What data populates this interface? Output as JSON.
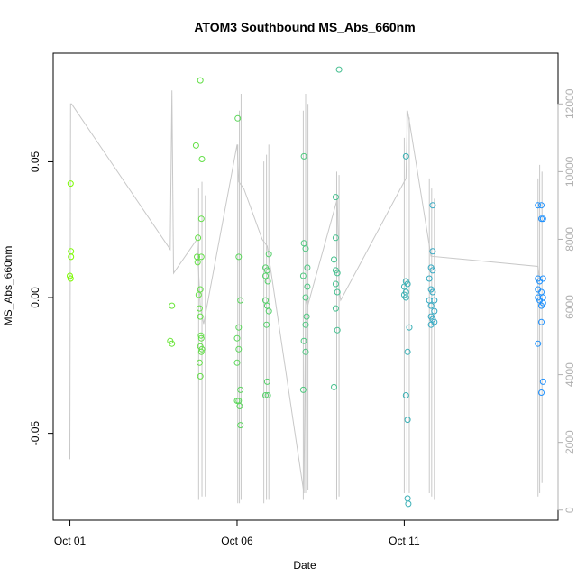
{
  "chart_data": {
    "type": "scatter",
    "title": "ATOM3 Southbound MS_Abs_660nm",
    "xlabel": "Date",
    "ylabel": "MS_Abs_660nm",
    "x_ticks": [
      "Oct 01",
      "Oct 06",
      "Oct 11"
    ],
    "x_tick_days": [
      0,
      5,
      10
    ],
    "xlim_days": [
      -0.5,
      14.6
    ],
    "y_ticks": [
      "-0.05",
      "0.00",
      "0.05"
    ],
    "y_tick_values": [
      -0.05,
      0.0,
      0.05
    ],
    "ylim": [
      -0.082,
      0.09
    ],
    "y2_ticks": [
      "0",
      "2000",
      "4000",
      "6000",
      "8000",
      "10000",
      "12000"
    ],
    "y2_tick_values": [
      0,
      2000,
      4000,
      6000,
      8000,
      10000,
      12000
    ],
    "y2lim": [
      -300,
      13500
    ],
    "grid": false,
    "colors": {
      "secondary_series": "#c8c8c8",
      "points_start": "#7cfc00",
      "points_end": "#1e90ff",
      "axis": "#000000",
      "secondary_axis": "#b0b0b0"
    },
    "series": [
      {
        "role": "points",
        "axis": "left",
        "points": [
          [
            0.02,
            0.042
          ],
          [
            0.03,
            0.017
          ],
          [
            0.03,
            0.015
          ],
          [
            0.0,
            0.008
          ],
          [
            0.02,
            0.007
          ],
          [
            3.05,
            -0.003
          ],
          [
            3.0,
            -0.016
          ],
          [
            3.05,
            -0.017
          ],
          [
            3.77,
            0.056
          ],
          [
            3.9,
            0.08
          ],
          [
            3.83,
            0.022
          ],
          [
            3.8,
            0.015
          ],
          [
            3.82,
            0.013
          ],
          [
            3.95,
            0.051
          ],
          [
            3.93,
            0.029
          ],
          [
            3.93,
            0.015
          ],
          [
            3.85,
            0.001
          ],
          [
            3.9,
            0.003
          ],
          [
            3.88,
            -0.004
          ],
          [
            3.9,
            -0.007
          ],
          [
            3.92,
            -0.014
          ],
          [
            3.93,
            -0.015
          ],
          [
            3.9,
            -0.018
          ],
          [
            3.95,
            -0.019
          ],
          [
            3.93,
            -0.02
          ],
          [
            3.88,
            -0.024
          ],
          [
            3.9,
            -0.029
          ],
          [
            5.02,
            0.066
          ],
          [
            5.05,
            0.015
          ],
          [
            5.1,
            -0.001
          ],
          [
            5.05,
            -0.011
          ],
          [
            5.0,
            -0.015
          ],
          [
            5.05,
            -0.019
          ],
          [
            5.0,
            -0.024
          ],
          [
            5.1,
            -0.034
          ],
          [
            5.05,
            -0.038
          ],
          [
            5.0,
            -0.038
          ],
          [
            5.08,
            -0.04
          ],
          [
            5.1,
            -0.047
          ],
          [
            5.85,
            0.011
          ],
          [
            5.9,
            0.01
          ],
          [
            5.95,
            0.016
          ],
          [
            5.85,
            0.008
          ],
          [
            5.92,
            0.006
          ],
          [
            5.85,
            -0.001
          ],
          [
            5.9,
            -0.003
          ],
          [
            5.95,
            -0.005
          ],
          [
            5.88,
            -0.01
          ],
          [
            5.9,
            -0.031
          ],
          [
            5.85,
            -0.036
          ],
          [
            5.92,
            -0.036
          ],
          [
            7.0,
            0.052
          ],
          [
            7.0,
            0.02
          ],
          [
            7.05,
            0.018
          ],
          [
            7.1,
            0.011
          ],
          [
            6.98,
            0.008
          ],
          [
            7.1,
            0.004
          ],
          [
            7.05,
            0.0
          ],
          [
            7.08,
            -0.007
          ],
          [
            7.05,
            -0.01
          ],
          [
            7.0,
            -0.016
          ],
          [
            7.05,
            -0.02
          ],
          [
            6.98,
            -0.034
          ],
          [
            8.05,
            0.084
          ],
          [
            7.95,
            0.037
          ],
          [
            7.95,
            0.022
          ],
          [
            7.9,
            0.014
          ],
          [
            7.95,
            0.01
          ],
          [
            8.0,
            0.009
          ],
          [
            7.95,
            0.005
          ],
          [
            8.0,
            0.002
          ],
          [
            7.95,
            -0.004
          ],
          [
            8.0,
            -0.012
          ],
          [
            7.9,
            -0.033
          ],
          [
            10.05,
            0.052
          ],
          [
            10.05,
            0.006
          ],
          [
            10.1,
            0.005
          ],
          [
            10.0,
            0.004
          ],
          [
            10.05,
            0.002
          ],
          [
            10.0,
            0.001
          ],
          [
            10.05,
            0.0
          ],
          [
            10.15,
            -0.011
          ],
          [
            10.1,
            -0.02
          ],
          [
            10.05,
            -0.036
          ],
          [
            10.1,
            -0.045
          ],
          [
            10.1,
            -0.074
          ],
          [
            10.12,
            -0.076
          ],
          [
            10.85,
            0.034
          ],
          [
            10.85,
            0.017
          ],
          [
            10.8,
            0.011
          ],
          [
            10.85,
            0.01
          ],
          [
            10.75,
            0.007
          ],
          [
            10.8,
            0.003
          ],
          [
            10.85,
            0.002
          ],
          [
            10.75,
            -0.001
          ],
          [
            10.9,
            -0.001
          ],
          [
            10.8,
            -0.003
          ],
          [
            10.9,
            -0.005
          ],
          [
            10.8,
            -0.007
          ],
          [
            10.85,
            -0.008
          ],
          [
            10.9,
            -0.009
          ],
          [
            10.8,
            -0.01
          ],
          [
            14.0,
            0.034
          ],
          [
            14.1,
            0.034
          ],
          [
            14.1,
            0.029
          ],
          [
            14.15,
            0.029
          ],
          [
            14.0,
            0.007
          ],
          [
            14.15,
            0.007
          ],
          [
            14.05,
            0.006
          ],
          [
            14.0,
            0.003
          ],
          [
            14.1,
            0.002
          ],
          [
            14.0,
            0.0
          ],
          [
            14.15,
            0.0
          ],
          [
            14.05,
            -0.001
          ],
          [
            14.1,
            -0.003
          ],
          [
            14.15,
            -0.002
          ],
          [
            14.1,
            -0.009
          ],
          [
            14.0,
            -0.017
          ],
          [
            14.15,
            -0.031
          ],
          [
            14.1,
            -0.035
          ]
        ]
      },
      {
        "role": "secondary_line",
        "axis": "right",
        "points": [
          [
            0.0,
            1500
          ],
          [
            0.02,
            12000
          ],
          [
            0.05,
            12000
          ],
          [
            3.0,
            7700
          ],
          [
            3.05,
            12400
          ],
          [
            3.1,
            7000
          ],
          [
            3.8,
            8000
          ],
          [
            3.9,
            6000
          ],
          [
            4.0,
            5500
          ],
          [
            5.0,
            10800
          ],
          [
            5.05,
            9700
          ],
          [
            5.2,
            9500
          ],
          [
            5.75,
            8000
          ],
          [
            5.9,
            7800
          ],
          [
            7.0,
            500
          ],
          [
            7.05,
            6300
          ],
          [
            7.1,
            6000
          ],
          [
            8.0,
            9200
          ],
          [
            8.05,
            6500
          ],
          [
            8.1,
            6200
          ],
          [
            10.05,
            9800
          ],
          [
            10.1,
            11800
          ],
          [
            10.15,
            11500
          ],
          [
            10.8,
            7500
          ],
          [
            14.0,
            7200
          ],
          [
            14.05,
            6800
          ]
        ],
        "bands": [
          {
            "x": 3.85,
            "low": 300,
            "high": 9500
          },
          {
            "x": 3.95,
            "low": 400,
            "high": 9700
          },
          {
            "x": 4.05,
            "low": 400,
            "high": 9300
          },
          {
            "x": 5.02,
            "low": 200,
            "high": 10800
          },
          {
            "x": 5.07,
            "low": 200,
            "high": 11800
          },
          {
            "x": 5.12,
            "low": 300,
            "high": 12300
          },
          {
            "x": 5.8,
            "low": 200,
            "high": 10300
          },
          {
            "x": 5.88,
            "low": 300,
            "high": 10500
          },
          {
            "x": 5.95,
            "low": 300,
            "high": 10800
          },
          {
            "x": 6.98,
            "low": 300,
            "high": 11800
          },
          {
            "x": 7.05,
            "low": 500,
            "high": 12300
          },
          {
            "x": 7.12,
            "low": 600,
            "high": 12000
          },
          {
            "x": 7.9,
            "low": 300,
            "high": 9800
          },
          {
            "x": 7.98,
            "low": 300,
            "high": 10000
          },
          {
            "x": 8.05,
            "low": 400,
            "high": 9900
          },
          {
            "x": 10.0,
            "low": 500,
            "high": 11000
          },
          {
            "x": 10.08,
            "low": 600,
            "high": 11800
          },
          {
            "x": 10.15,
            "low": 500,
            "high": 11600
          },
          {
            "x": 10.75,
            "low": 500,
            "high": 9800
          },
          {
            "x": 10.82,
            "low": 400,
            "high": 9500
          },
          {
            "x": 10.9,
            "low": 300,
            "high": 9200
          },
          {
            "x": 14.0,
            "low": 400,
            "high": 9800
          },
          {
            "x": 14.05,
            "low": 500,
            "high": 10200
          },
          {
            "x": 14.12,
            "low": 800,
            "high": 10000
          }
        ]
      }
    ]
  }
}
